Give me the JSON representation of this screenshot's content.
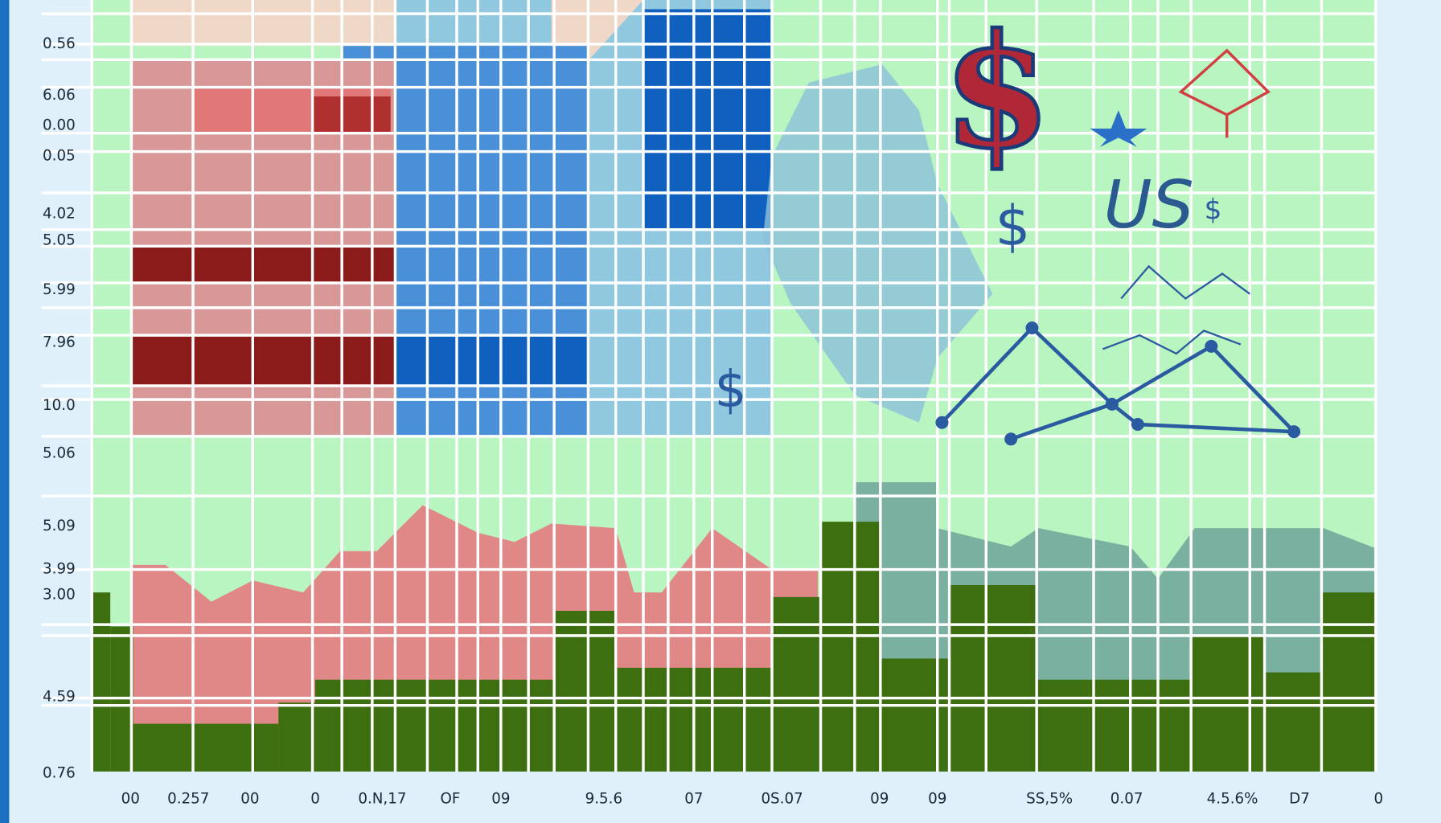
{
  "left_labels": [
    "0.56",
    "6.06",
    "0.00",
    "0.05",
    "4.02",
    "5.05",
    "5.99",
    "7.96",
    "10.0",
    "5.06",
    "5.09",
    "3.99",
    "3.00",
    "4.59",
    "0.76"
  ],
  "bottom_labels": [
    "00",
    "0.257",
    "00",
    "0",
    "0.N,17",
    "OF",
    "09",
    "9.5.6",
    "07",
    "0S.07",
    "09",
    "09",
    "SS,5%",
    "0.07",
    "4.5.6%",
    "D7",
    "0"
  ],
  "symbols": {
    "us": "US",
    "dollar": "$"
  }
}
